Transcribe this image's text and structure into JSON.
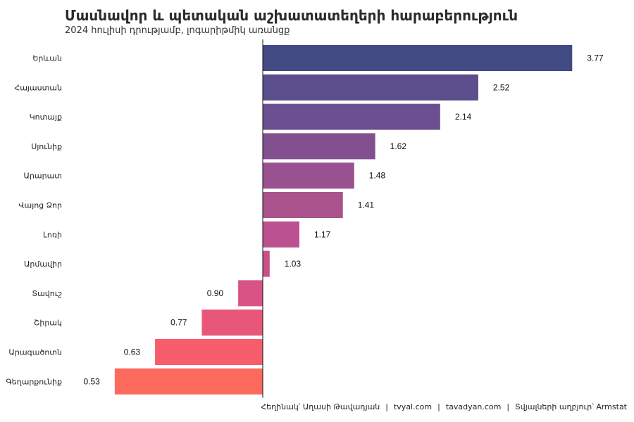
{
  "title": "Մասնավոր և պետական աշխատատեղերի հարաբերություն",
  "subtitle": "2024 հուլիսի դրությամբ, լոգարիթմիկ առանցք",
  "caption": {
    "author": "Հեղինակ՝ Աղասի Թավադյան",
    "site1": "tvyal.com",
    "site2": "tavadyan.com",
    "source": "Տվյալների աղբյուր՝ Armstat",
    "separator": "|"
  },
  "chart_data": {
    "type": "bar",
    "orientation": "horizontal",
    "x_scale": "log",
    "baseline": 1,
    "categories": [
      "Երևան",
      "Հայաստան",
      "Կոտայք",
      "Սյունիք",
      "Արարատ",
      "Վայոց Ձոր",
      "Լոռի",
      "Արմավիր",
      "Տավուշ",
      "Շիրակ",
      "Արագածոտն",
      "Գեղարքունիք"
    ],
    "values": [
      3.77,
      2.52,
      2.14,
      1.62,
      1.48,
      1.41,
      1.17,
      1.03,
      0.9,
      0.77,
      0.63,
      0.53
    ],
    "value_labels": [
      "3.77",
      "2.52",
      "2.14",
      "1.62",
      "1.48",
      "1.41",
      "1.17",
      "1.03",
      "0.90",
      "0.77",
      "0.63",
      "0.53"
    ],
    "colors": [
      "#414a82",
      "#5a4e8c",
      "#6c4f90",
      "#82508f",
      "#9a5190",
      "#a9528c",
      "#bc5191",
      "#c95089",
      "#d95384",
      "#e8577a",
      "#f75e6c",
      "#fc6a5d"
    ],
    "grid": false,
    "xlabel": "",
    "ylabel": ""
  }
}
